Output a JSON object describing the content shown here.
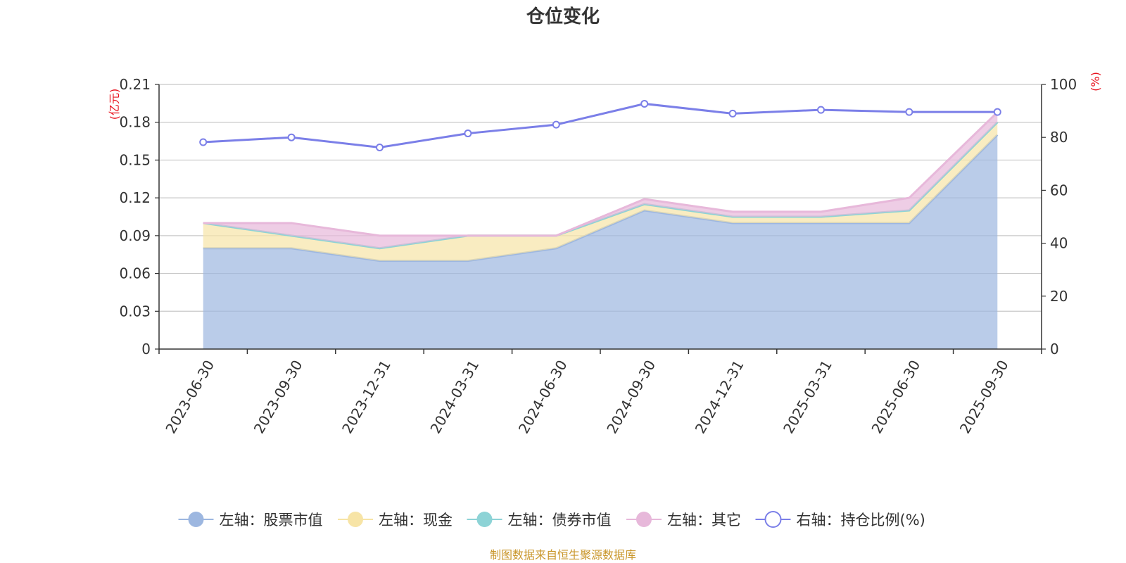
{
  "chart_data": {
    "type": "area",
    "title": "仓位变化",
    "categories": [
      "2023-06-30",
      "2023-09-30",
      "2023-12-31",
      "2024-03-31",
      "2024-06-30",
      "2024-09-30",
      "2024-12-31",
      "2025-03-31",
      "2025-06-30",
      "2025-09-30"
    ],
    "left_axis": {
      "unit": "(亿元)",
      "ylim": [
        0,
        0.21
      ],
      "ticks": [
        "0",
        "0.03",
        "0.06",
        "0.09",
        "0.12",
        "0.15",
        "0.18",
        "0.21"
      ]
    },
    "right_axis": {
      "unit": "(%)",
      "ylim": [
        0,
        100
      ],
      "ticks": [
        "0",
        "20",
        "40",
        "60",
        "80",
        "100"
      ]
    },
    "series": [
      {
        "name": "左轴：股票市值",
        "axis": "left",
        "stacked": true,
        "color": "#9db7e0",
        "values": [
          0.08,
          0.08,
          0.07,
          0.07,
          0.08,
          0.11,
          0.1,
          0.1,
          0.1,
          0.17
        ]
      },
      {
        "name": "左轴：现金",
        "axis": "left",
        "stacked": true,
        "color": "#f7e4a6",
        "values": [
          0.02,
          0.01,
          0.01,
          0.02,
          0.01,
          0.005,
          0.005,
          0.005,
          0.01,
          0.01
        ]
      },
      {
        "name": "左轴：债券市值",
        "axis": "left",
        "stacked": true,
        "color": "#8dd3d6",
        "values": [
          0,
          0,
          0,
          0,
          0,
          0,
          0,
          0,
          0,
          0
        ]
      },
      {
        "name": "左轴：其它",
        "axis": "left",
        "stacked": true,
        "color": "#e7b8da",
        "values": [
          0,
          0.01,
          0.01,
          0,
          0,
          0.004,
          0.004,
          0.004,
          0.01,
          0.008
        ]
      },
      {
        "name": "右轴：持仓比例(%)",
        "axis": "right",
        "type": "line",
        "color": "#7b7fe8",
        "values": [
          78.2,
          80.0,
          76.2,
          81.5,
          84.8,
          92.7,
          89.0,
          90.4,
          89.6,
          89.6
        ]
      }
    ],
    "source": "制图数据来自恒生聚源数据库"
  }
}
